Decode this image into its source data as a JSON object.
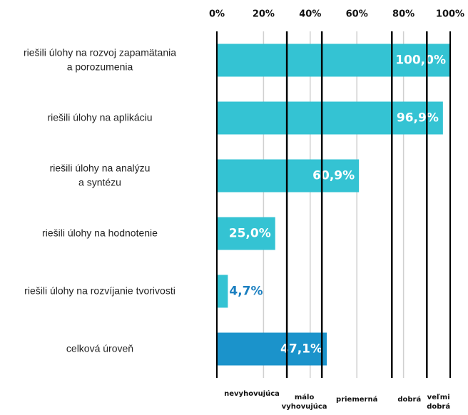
{
  "chart_data": {
    "type": "bar",
    "orientation": "horizontal",
    "categories": [
      [
        "riešili úlohy na rozvoj zapamätania",
        "a porozumenia"
      ],
      [
        "riešili úlohy na aplikáciu"
      ],
      [
        "riešili úlohy na analýzu",
        "a syntézu"
      ],
      [
        "riešili úlohy na hodnotenie"
      ],
      [
        "riešili úlohy na rozvíjanie tvorivosti"
      ],
      [
        "celková úroveň"
      ]
    ],
    "values": [
      100.0,
      96.9,
      60.9,
      25.0,
      4.7,
      47.1
    ],
    "value_labels": [
      "100,0%",
      "96,9%",
      "60,9%",
      "25,0%",
      "4,7%",
      "47,1%"
    ],
    "colors": [
      "#34c3d3",
      "#34c3d3",
      "#34c3d3",
      "#34c3d3",
      "#34c3d3",
      "#1b93cb"
    ],
    "xlim": [
      0,
      100
    ],
    "xticks": [
      {
        "value": 0,
        "label": "0%"
      },
      {
        "value": 20,
        "label": "20%"
      },
      {
        "value": 40,
        "label": "40%"
      },
      {
        "value": 60,
        "label": "60%"
      },
      {
        "value": 80,
        "label": "80%"
      },
      {
        "value": 100,
        "label": "100%"
      }
    ],
    "grid": true,
    "thresholds": [
      30,
      45,
      75,
      90
    ],
    "band_labels": [
      [
        "nevyhovujúca"
      ],
      [
        "málo",
        "vyhovujúca"
      ],
      [
        "priemerná"
      ],
      [
        "dobrá"
      ],
      [
        "veľmi",
        "dobrá"
      ]
    ]
  }
}
